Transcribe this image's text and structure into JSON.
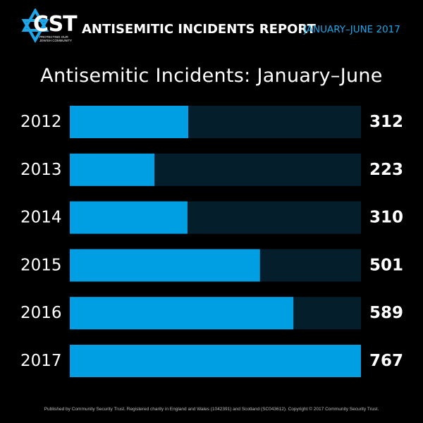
{
  "header": {
    "logo_text": "CST",
    "logo_subtitle": "PROTECTING OUR JEWISH COMMUNITY",
    "report_title": "ANTISEMITIC INCIDENTS REPORT",
    "report_period": "JANUARY–JUNE 2017"
  },
  "colors": {
    "background": "#000000",
    "bar_fill": "#009fe3",
    "bar_track": "#041e2c",
    "accent": "#1ea7e8"
  },
  "chart_data": {
    "type": "bar",
    "orientation": "horizontal",
    "title": "Antisemitic Incidents: January–June",
    "categories": [
      "2012",
      "2013",
      "2014",
      "2015",
      "2016",
      "2017"
    ],
    "values": [
      312,
      223,
      310,
      501,
      589,
      767
    ],
    "value_labels": [
      "312",
      "223",
      "310",
      "501",
      "589",
      "767"
    ],
    "xlim": [
      0,
      767
    ],
    "grid": false,
    "legend": "none"
  },
  "footer": {
    "text": "Published by Community Security Trust. Registered charity in England and Wales (1042391) and Scotland (SC043612). Copyright © 2017 Community Security Trust."
  }
}
